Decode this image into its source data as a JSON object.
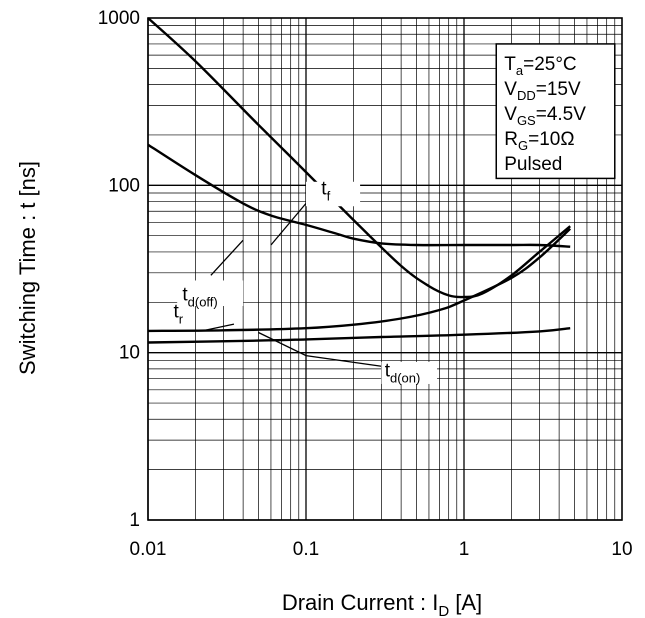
{
  "chart_data": {
    "type": "line",
    "x_scale": "log",
    "y_scale": "log",
    "xlim": [
      0.01,
      10
    ],
    "ylim": [
      1,
      1000
    ],
    "grid": true,
    "x_ticks": [
      "0.01",
      "0.1",
      "1",
      "10"
    ],
    "y_ticks": [
      "1",
      "10",
      "100",
      "1000"
    ],
    "xlabel": {
      "main": "Drain Current : I",
      "sub": "D",
      "unit": " [A]"
    },
    "ylabel": "Switching Time : t [ns]",
    "series": [
      {
        "name": {
          "main": "t",
          "sub": "f"
        },
        "x": [
          0.01,
          0.02,
          0.05,
          0.1,
          0.2,
          0.4,
          0.6,
          0.8,
          1.0,
          1.3,
          2,
          3,
          4.7
        ],
        "y": [
          1000,
          550,
          230,
          120,
          62,
          33,
          25,
          22,
          21.5,
          22.5,
          29,
          40,
          57
        ]
      },
      {
        "name": {
          "main": "t",
          "sub": "d(off)"
        },
        "x": [
          0.01,
          0.02,
          0.04,
          0.06,
          0.1,
          0.15,
          0.2,
          0.3,
          0.5,
          1,
          2,
          3,
          4.7
        ],
        "y": [
          175,
          115,
          78,
          66,
          58,
          52,
          48,
          45,
          44,
          44,
          44,
          44,
          43
        ]
      },
      {
        "name": {
          "main": "t",
          "sub": "r"
        },
        "x": [
          0.01,
          0.03,
          0.1,
          0.2,
          0.4,
          0.7,
          1,
          2,
          3,
          4.7
        ],
        "y": [
          13.5,
          13.6,
          14,
          14.7,
          16,
          18,
          20.5,
          28,
          37,
          55
        ]
      },
      {
        "name": {
          "main": "t",
          "sub": "d(on)"
        },
        "x": [
          0.01,
          0.05,
          0.1,
          0.3,
          1,
          3,
          4.7
        ],
        "y": [
          11.5,
          11.8,
          12,
          12.4,
          12.8,
          13.4,
          14
        ]
      }
    ],
    "legend": {
      "placement": "top-right",
      "lines": [
        {
          "main": "T",
          "sub": "a",
          "rest": "=25°C"
        },
        {
          "main": "V",
          "sub": "DD",
          "rest": "=15V"
        },
        {
          "main": "V",
          "sub": "GS",
          "rest": "=4.5V"
        },
        {
          "main": "R",
          "sub": "G",
          "rest": "=10Ω"
        },
        {
          "main": "Pulsed",
          "sub": "",
          "rest": ""
        }
      ]
    }
  }
}
